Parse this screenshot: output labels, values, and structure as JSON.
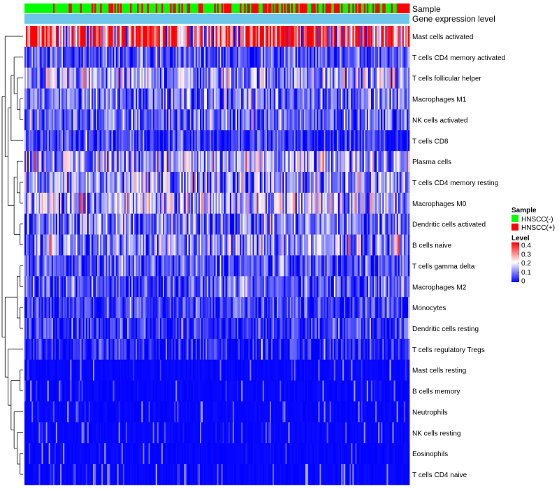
{
  "chart_data": {
    "type": "heatmap",
    "title": "",
    "annotation_rows": [
      "Sample",
      "Gene expression level"
    ],
    "rows": [
      "Mast cells activated",
      "T cells CD4 memory activated",
      "T cells follicular helper",
      "Macrophages M1",
      "NK cells activated",
      "T cells CD8",
      "Plasma cells",
      "T cells CD4 memory resting",
      "Macrophages M0",
      "Dendritic cells activated",
      "B cells naive",
      "T cells gamma delta",
      "Macrophages M2",
      "Monocytes",
      "Dendritic cells resting",
      "T cells regulatory  Tregs",
      "Mast cells resting",
      "B cells memory",
      "Neutrophils",
      "NK cells resting",
      "Eosinophils",
      "T cells CD4 naive"
    ],
    "row_mean_levels": [
      0.33,
      0.06,
      0.12,
      0.09,
      0.08,
      0.04,
      0.13,
      0.12,
      0.15,
      0.09,
      0.11,
      0.06,
      0.06,
      0.05,
      0.04,
      0.03,
      0.01,
      0.01,
      0.02,
      0.01,
      0.01,
      0.02
    ],
    "legend": {
      "sample": {
        "title": "Sample",
        "entries": [
          {
            "label": "HNSCC(-)",
            "color": "#00ff00"
          },
          {
            "label": "HNSCC(+)",
            "color": "#ff0000"
          }
        ]
      },
      "level": {
        "title": "Level",
        "ticks": [
          "0.4",
          "0.3",
          "0.2",
          "0.1",
          "0"
        ],
        "range": [
          0,
          0.4
        ],
        "colors": [
          "#0000ff",
          "#ffffff",
          "#ff0000"
        ]
      }
    },
    "colors": {
      "gene_expression_bar": "#6ec6ea",
      "dendrogram": "#000000"
    }
  }
}
